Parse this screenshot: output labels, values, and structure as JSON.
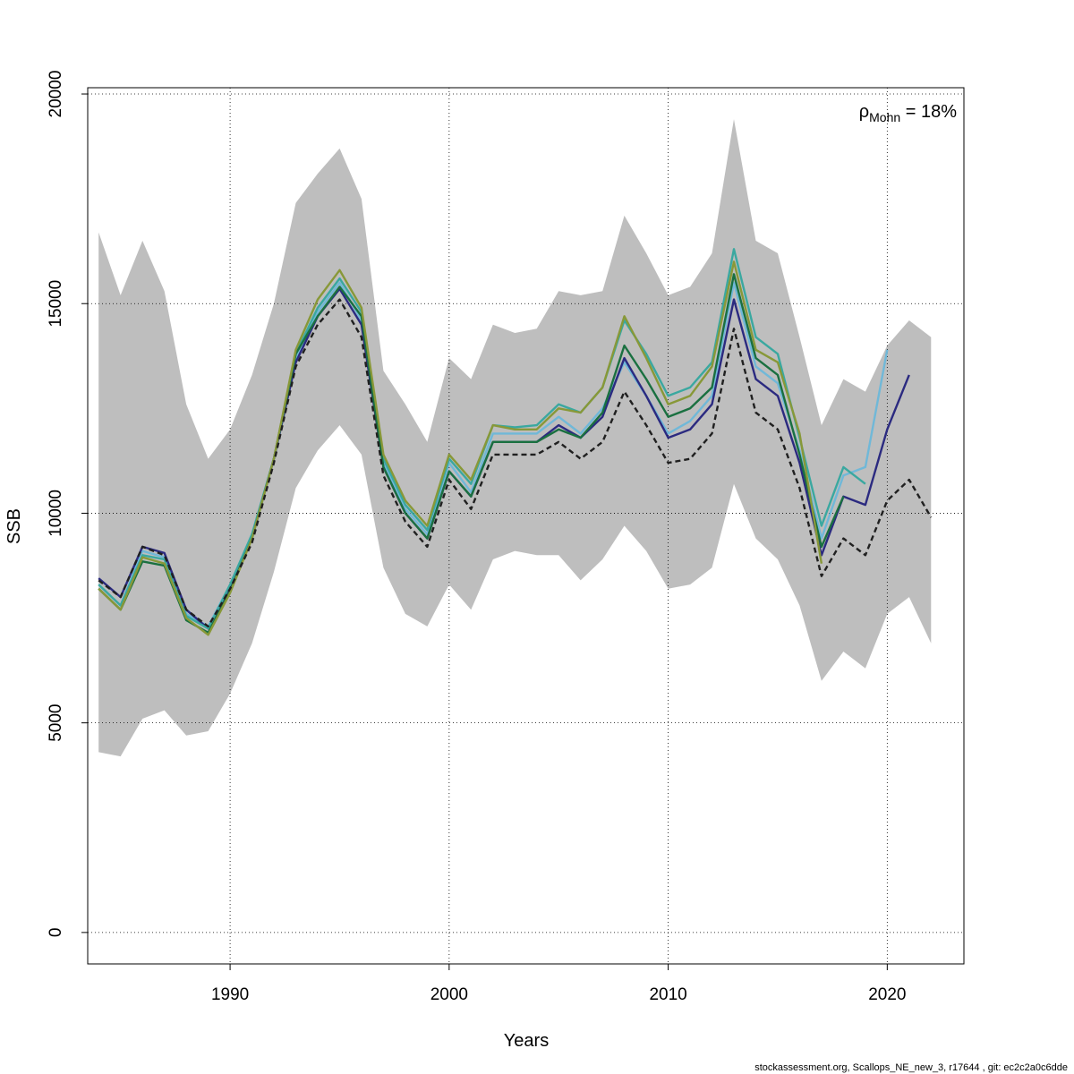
{
  "chart_data": {
    "type": "line",
    "title": "",
    "xlabel": "Years",
    "ylabel": "SSB",
    "xlim": [
      1983.5,
      2023.5
    ],
    "ylim": [
      -750,
      20150
    ],
    "x_ticks": [
      1990,
      2000,
      2010,
      2020
    ],
    "y_ticks": [
      0,
      5000,
      10000,
      15000,
      20000
    ],
    "grid": true,
    "annotation": {
      "rho": "ρ",
      "sub": "Mohn",
      "text": " = 18%"
    },
    "footer": "stockassessment.org, Scallops_NE_new_3, r17644 , git: ec2c2a0c6dde",
    "ci_band": {
      "x": [
        1984,
        1985,
        1986,
        1987,
        1988,
        1989,
        1990,
        1991,
        1992,
        1993,
        1994,
        1995,
        1996,
        1997,
        1998,
        1999,
        2000,
        2001,
        2002,
        2003,
        2004,
        2005,
        2006,
        2007,
        2008,
        2009,
        2010,
        2011,
        2012,
        2013,
        2014,
        2015,
        2016,
        2017,
        2018,
        2019,
        2020,
        2021,
        2022
      ],
      "upper": [
        16700,
        15200,
        16500,
        15300,
        12600,
        11300,
        12000,
        13300,
        15000,
        17400,
        18100,
        18700,
        17500,
        13400,
        12600,
        11700,
        13700,
        13200,
        14500,
        14300,
        14400,
        15300,
        15200,
        15300,
        17100,
        16200,
        15200,
        15400,
        16200,
        19400,
        16500,
        16200,
        14200,
        12100,
        13200,
        12900,
        14000,
        14600,
        14200
      ],
      "lower": [
        4300,
        4200,
        5100,
        5300,
        4700,
        4800,
        5700,
        6900,
        8600,
        10600,
        11500,
        12100,
        11400,
        8700,
        7600,
        7300,
        8300,
        7700,
        8900,
        9100,
        9000,
        9000,
        8400,
        8900,
        9700,
        9100,
        8200,
        8300,
        8700,
        10700,
        9400,
        8900,
        7800,
        6000,
        6700,
        6300,
        7600,
        8000,
        6900
      ]
    },
    "series": [
      {
        "color": "#70b8d8",
        "dashed": false,
        "x": [
          1984,
          1985,
          1986,
          1987,
          1988,
          1989,
          1990,
          1991,
          1992,
          1993,
          1994,
          1995,
          1996,
          1997,
          1998,
          1999,
          2000,
          2001,
          2002,
          2003,
          2004,
          2005,
          2006,
          2007,
          2008,
          2009,
          2010,
          2011,
          2012,
          2013,
          2014,
          2015,
          2016,
          2017,
          2018,
          2019,
          2020
        ],
        "values": [
          8300,
          7800,
          9100,
          8950,
          7600,
          7300,
          8300,
          9500,
          11300,
          13700,
          14800,
          15500,
          14600,
          11200,
          10100,
          9500,
          11200,
          10500,
          11900,
          11900,
          11900,
          12300,
          11900,
          12500,
          13600,
          12800,
          11900,
          12200,
          12800,
          15500,
          13500,
          13100,
          11500,
          9400,
          10900,
          11100,
          13900
        ]
      },
      {
        "color": "#2b2a80",
        "dashed": false,
        "x": [
          1984,
          1985,
          1986,
          1987,
          1988,
          1989,
          1990,
          1991,
          1992,
          1993,
          1994,
          1995,
          1996,
          1997,
          1998,
          1999,
          2000,
          2001,
          2002,
          2003,
          2004,
          2005,
          2006,
          2007,
          2008,
          2009,
          2010,
          2011,
          2012,
          2013,
          2014,
          2015,
          2016,
          2017,
          2018,
          2019,
          2020,
          2021
        ],
        "values": [
          8450,
          8000,
          9200,
          9050,
          7700,
          7250,
          8250,
          9450,
          11300,
          13600,
          14700,
          15350,
          14500,
          11100,
          10000,
          9400,
          11000,
          10400,
          11700,
          11700,
          11700,
          12100,
          11800,
          12300,
          13700,
          12800,
          11800,
          12000,
          12600,
          15100,
          13200,
          12800,
          11200,
          9000,
          10400,
          10200,
          12000,
          13300
        ]
      },
      {
        "color": "#3aa8a0",
        "dashed": false,
        "x": [
          1984,
          1985,
          1986,
          1987,
          1988,
          1989,
          1990,
          1991,
          1992,
          1993,
          1994,
          1995,
          1996,
          1997,
          1998,
          1999,
          2000,
          2001,
          2002,
          2003,
          2004,
          2005,
          2006,
          2007,
          2008,
          2009,
          2010,
          2011,
          2012,
          2013,
          2014,
          2015,
          2016,
          2017,
          2018,
          2019
        ],
        "values": [
          8300,
          7800,
          9000,
          8900,
          7550,
          7250,
          8300,
          9500,
          11300,
          13800,
          14900,
          15600,
          14800,
          11300,
          10200,
          9600,
          11300,
          10700,
          12100,
          12050,
          12100,
          12600,
          12400,
          13000,
          14600,
          13800,
          12800,
          13000,
          13600,
          16300,
          14200,
          13800,
          11800,
          9700,
          11100,
          10700
        ]
      },
      {
        "color": "#1a7040",
        "dashed": false,
        "x": [
          1984,
          1985,
          1986,
          1987,
          1988,
          1989,
          1990,
          1991,
          1992,
          1993,
          1994,
          1995,
          1996,
          1997,
          1998,
          1999,
          2000,
          2001,
          2002,
          2003,
          2004,
          2005,
          2006,
          2007,
          2008,
          2009,
          2010,
          2011,
          2012,
          2013,
          2014,
          2015,
          2016,
          2017,
          2018
        ],
        "values": [
          8200,
          7700,
          8850,
          8750,
          7450,
          7150,
          8150,
          9400,
          11300,
          13800,
          14700,
          15400,
          14700,
          11100,
          10000,
          9400,
          11000,
          10400,
          11700,
          11700,
          11700,
          12000,
          11800,
          12400,
          14000,
          13200,
          12300,
          12500,
          13000,
          15700,
          13700,
          13300,
          11400,
          9200,
          10400
        ]
      },
      {
        "color": "#889838",
        "dashed": false,
        "x": [
          1984,
          1985,
          1986,
          1987,
          1988,
          1989,
          1990,
          1991,
          1992,
          1993,
          1994,
          1995,
          1996,
          1997,
          1998,
          1999,
          2000,
          2001,
          2002,
          2003,
          2004,
          2005,
          2006,
          2007,
          2008,
          2009,
          2010,
          2011,
          2012,
          2013,
          2014,
          2015,
          2016,
          2017
        ],
        "values": [
          8200,
          7700,
          8950,
          8800,
          7500,
          7100,
          8100,
          9400,
          11300,
          13900,
          15100,
          15800,
          14900,
          11400,
          10300,
          9700,
          11400,
          10800,
          12100,
          12000,
          12000,
          12500,
          12400,
          13000,
          14700,
          13700,
          12600,
          12800,
          13500,
          16000,
          13900,
          13600,
          11900,
          8800
        ]
      },
      {
        "color": "#202020",
        "dashed": true,
        "x": [
          1984,
          1985,
          1986,
          1987,
          1988,
          1989,
          1990,
          1991,
          1992,
          1993,
          1994,
          1995,
          1996,
          1997,
          1998,
          1999,
          2000,
          2001,
          2002,
          2003,
          2004,
          2005,
          2006,
          2007,
          2008,
          2009,
          2010,
          2011,
          2012,
          2013,
          2014,
          2015,
          2016,
          2017,
          2018,
          2019,
          2020,
          2021,
          2022
        ],
        "values": [
          8400,
          8000,
          9200,
          9000,
          7700,
          7300,
          8200,
          9300,
          11200,
          13500,
          14500,
          15100,
          14200,
          10900,
          9800,
          9200,
          10800,
          10100,
          11400,
          11400,
          11400,
          11700,
          11300,
          11700,
          12900,
          12100,
          11200,
          11300,
          11900,
          14400,
          12400,
          12000,
          10600,
          8500,
          9400,
          9000,
          10300,
          10800,
          9900
        ]
      }
    ]
  }
}
